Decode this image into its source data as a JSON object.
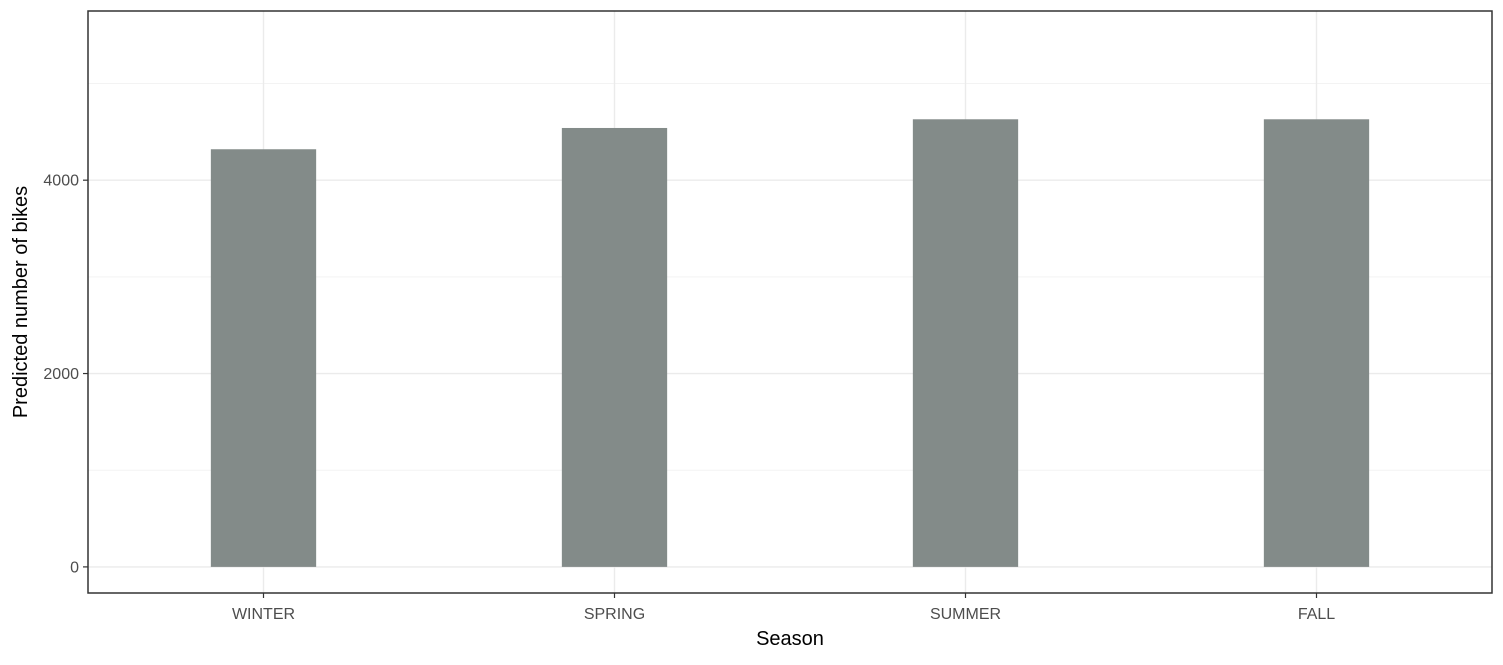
{
  "chart_data": {
    "type": "bar",
    "title": "",
    "xlabel": "Season",
    "ylabel": "Predicted number of bikes",
    "categories": [
      "WINTER",
      "SPRING",
      "SUMMER",
      "FALL"
    ],
    "values": [
      4320,
      4540,
      4630,
      4630
    ],
    "ylim": [
      -270,
      5750
    ],
    "yticks": [
      0,
      2000,
      4000
    ],
    "ytick_labels": [
      "0",
      "2000",
      "4000"
    ],
    "grid": true,
    "legend": "none",
    "colors": {
      "bar": "#838b89",
      "grid_major": "#ebebeb",
      "grid_minor": "#f3f3f3",
      "panel_border": "#333333",
      "background": "#ffffff"
    }
  }
}
